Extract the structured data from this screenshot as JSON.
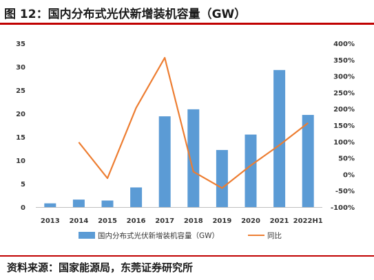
{
  "figure": {
    "title": "图 12：国内分布式光伏新增装机容量（GW）",
    "source": "资料来源：国家能源局，东莞证券研究所"
  },
  "colors": {
    "bar": "#5b9bd5",
    "line": "#ed7d31",
    "rule": "#c00000"
  },
  "chart_data": {
    "type": "bar",
    "categories": [
      "2013",
      "2014",
      "2015",
      "2016",
      "2017",
      "2018",
      "2019",
      "2020",
      "2021",
      "2022H1"
    ],
    "series": [
      {
        "name": "国内分布式光伏新增装机容量（GW）",
        "type": "bar",
        "axis": "left",
        "values": [
          0.8,
          1.6,
          1.4,
          4.2,
          19.4,
          20.9,
          12.2,
          15.5,
          29.3,
          19.7
        ]
      },
      {
        "name": "同比",
        "type": "line",
        "axis": "right",
        "values": [
          null,
          98,
          -12,
          203,
          356,
          8,
          -42,
          27,
          89,
          157
        ]
      }
    ],
    "y_left": {
      "min": 0,
      "max": 35,
      "ticks": [
        0,
        5,
        10,
        15,
        20,
        25,
        30,
        35
      ]
    },
    "y_right": {
      "min": -100,
      "max": 400,
      "ticks": [
        -100,
        -50,
        0,
        50,
        100,
        150,
        200,
        250,
        300,
        350,
        400
      ],
      "tick_labels": [
        "-100%",
        "-50%",
        "0%",
        "50%",
        "100%",
        "150%",
        "200%",
        "250%",
        "300%",
        "350%",
        "400%"
      ]
    },
    "grid": false,
    "legend_position": "bottom"
  }
}
